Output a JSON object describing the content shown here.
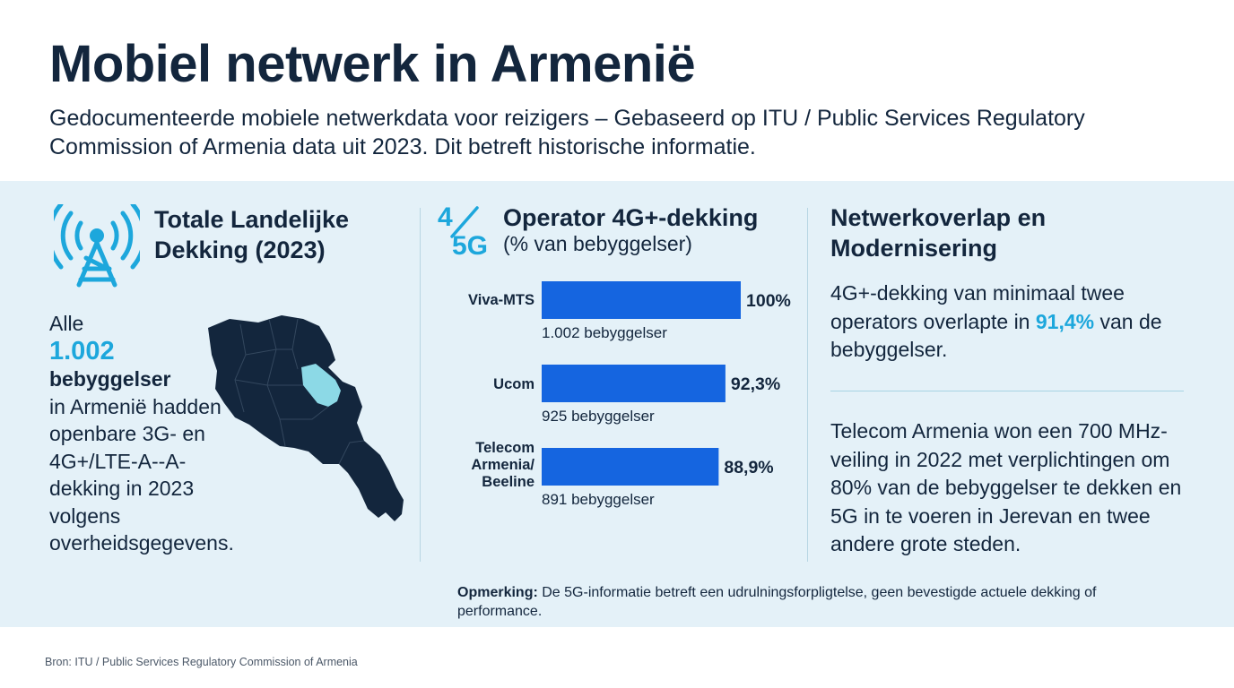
{
  "header": {
    "title": "Mobiel netwerk in Armenië",
    "subtitle": "Gedocumenteerde mobiele netwerkdata voor reizigers – Gebaseerd op ITU / Public Services Regulatory Commission of Armenia data uit 2023. Dit betreft historische informatie."
  },
  "left_panel": {
    "heading": "Totale Landelijke Dekking (2023)",
    "text_prefix": "Alle",
    "settlements_number": "1.002",
    "settlements_word": "bebyggelser",
    "text_suffix": "in Armenië hadden openbare 3G- en 4G+/LTE-A--A-dekking in 2023 volgens overheidsgegevens.",
    "icon": "cell-tower-icon",
    "map": "armenia-map"
  },
  "center_panel": {
    "badge_top": "4",
    "badge_bottom": "5G",
    "heading": "Operator 4G+-dekking",
    "subheading": "(% van bebyggelser)"
  },
  "chart_data": {
    "type": "bar",
    "orientation": "horizontal",
    "title": "Operator 4G+-dekking",
    "subtitle": "(% van bebyggelser)",
    "categories": [
      "Viva-MTS",
      "Ucom",
      "Telecom Armenia/ Beeline"
    ],
    "values": [
      100,
      92.3,
      88.9
    ],
    "value_labels": [
      "100%",
      "92,3%",
      "88,9%"
    ],
    "counts": [
      "1.002 bebyggelser",
      "925 bebyggelser",
      "891 bebyggelser"
    ],
    "xlim": [
      0,
      100
    ],
    "grid": false,
    "colors": {
      "bar": "#1565e0"
    }
  },
  "right_panel": {
    "heading": "Netwerkoverlap en Modernisering",
    "p1_before": "4G+-dekking van minimaal twee operators overlapte in",
    "p1_highlight": "91,4%",
    "p1_after": "van de bebyggelser.",
    "p2": "Telecom Armenia won een 700 MHz-veiling in 2022 met verplichtingen om 80% van de bebyggelser te dekken en 5G in te voeren in Jerevan en twee andere grote steden."
  },
  "note": {
    "label": "Opmerking:",
    "text": "De 5G-informatie betreft een udrulningsforpligtelse, geen bevestigde actuele dekking of performance."
  },
  "footer": {
    "source": "Bron: ITU / Public Services Regulatory Commission of Armenia"
  },
  "colors": {
    "navy": "#13263d",
    "accent": "#1da7dc",
    "bar": "#1565e0",
    "band": "#e4f1f8",
    "map_dark": "#13263d",
    "map_highlight": "#8cd9e6"
  }
}
